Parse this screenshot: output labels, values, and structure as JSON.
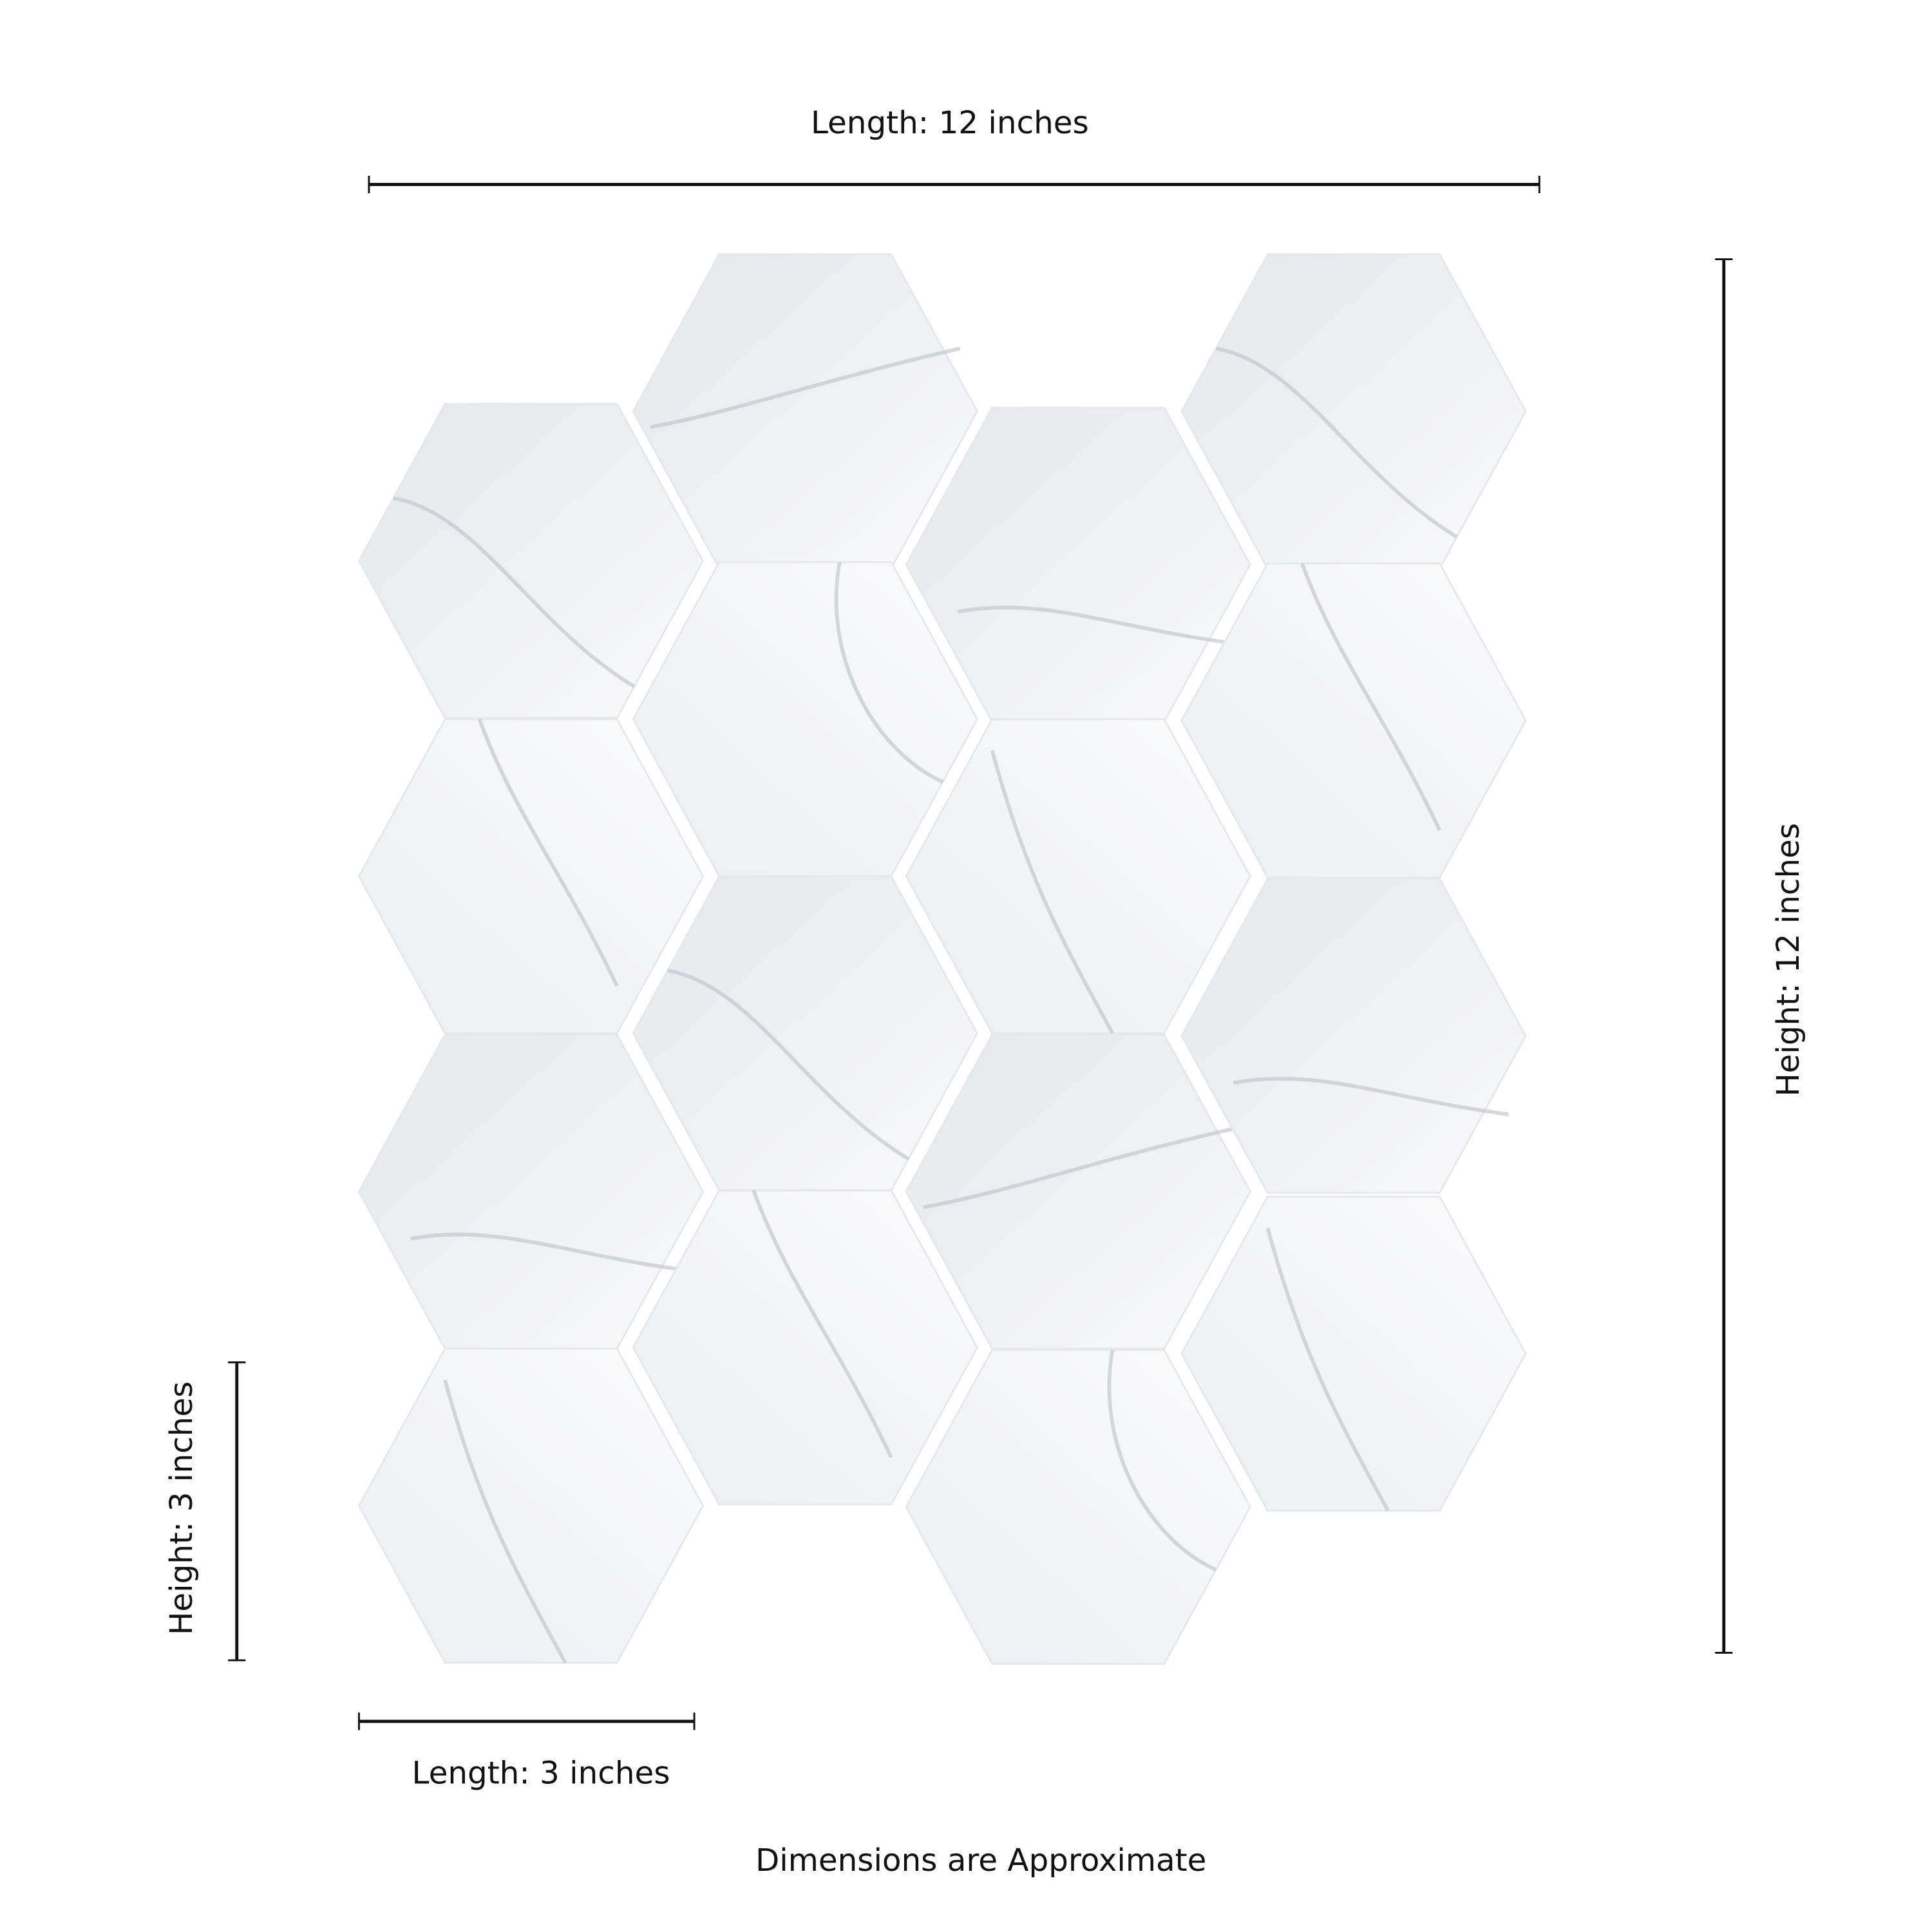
{
  "labels": {
    "overall_length": "Length: 12 inches",
    "overall_height": "Height: 12 inches",
    "tile_height": "Height: 3 inches",
    "tile_length": "Length: 3 inches",
    "footnote": "Dimensions are Approximate"
  },
  "product": {
    "tile_shape": "hexagon",
    "tile_finish": "white marble with gray veining",
    "columns": 4,
    "tiles_per_column": [
      4,
      4,
      4,
      4
    ]
  },
  "colors": {
    "background": "#ffffff",
    "tile_base": "#f2f3f5",
    "tile_shade": "#e3e5e9",
    "vein": "#b8bcc3",
    "dimension_line": "#111111"
  }
}
